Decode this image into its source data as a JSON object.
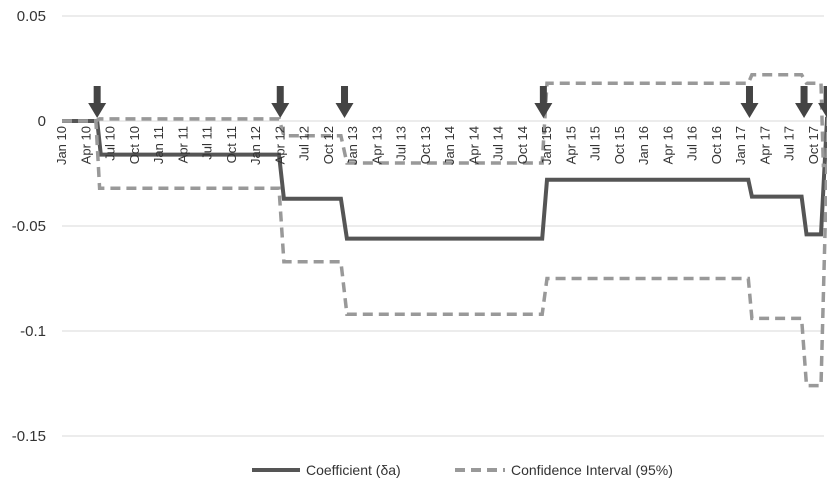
{
  "chart_data": {
    "type": "line",
    "title": "",
    "xlabel": "",
    "ylabel": "",
    "ylim": [
      -0.15,
      0.05
    ],
    "yticks": [
      "-0.15",
      "-0.1",
      "-0.05",
      "0",
      "0.05"
    ],
    "grid": "horizontal",
    "legend_position": "bottom",
    "x_categories": [
      "Jan 10",
      "Apr 10",
      "Jul 10",
      "Oct 10",
      "Jan 11",
      "Apr 11",
      "Jul 11",
      "Oct 11",
      "Jan 12",
      "Apr 12",
      "Jul 12",
      "Oct 12",
      "Jan 13",
      "Apr 13",
      "Jul 13",
      "Oct 13",
      "Jan 14",
      "Apr 14",
      "Jul 14",
      "Oct 14",
      "Jan 15",
      "Apr 15",
      "Jul 15",
      "Oct 15",
      "Jan 16",
      "Apr 16",
      "Jul 16",
      "Oct 16",
      "Jan 17",
      "Apr 17",
      "Jul 17",
      "Oct 17"
    ],
    "series": [
      {
        "name": "Coefficient (δa)",
        "style": "solid",
        "color": "#555555",
        "points": [
          [
            0,
            0
          ],
          [
            1.45,
            0
          ],
          [
            1.6,
            -0.016
          ],
          [
            8.95,
            -0.016
          ],
          [
            9.15,
            -0.037
          ],
          [
            11.5,
            -0.037
          ],
          [
            11.75,
            -0.056
          ],
          [
            19.8,
            -0.056
          ],
          [
            20.0,
            -0.028
          ],
          [
            28.3,
            -0.028
          ],
          [
            28.45,
            -0.036
          ],
          [
            30.5,
            -0.036
          ],
          [
            30.7,
            -0.054
          ],
          [
            31.3,
            -0.054
          ],
          [
            31.55,
            0.002
          ]
        ]
      },
      {
        "name": "Confidence Interval (95%)",
        "style": "dashed",
        "color": "#999999",
        "points": [
          [
            0,
            0
          ],
          [
            1.4,
            0
          ],
          [
            1.55,
            -0.032
          ],
          [
            8.95,
            -0.032
          ],
          [
            9.15,
            -0.067
          ],
          [
            11.5,
            -0.067
          ],
          [
            11.75,
            -0.092
          ],
          [
            19.8,
            -0.092
          ],
          [
            20.0,
            -0.075
          ],
          [
            28.3,
            -0.075
          ],
          [
            28.45,
            -0.094
          ],
          [
            30.5,
            -0.094
          ],
          [
            30.7,
            -0.126
          ],
          [
            31.3,
            -0.126
          ],
          [
            31.7,
            0.05
          ]
        ]
      },
      {
        "name": "",
        "style": "dashed",
        "color": "#999999",
        "points": [
          [
            0,
            0
          ],
          [
            1.4,
            0
          ],
          [
            1.55,
            0.001
          ],
          [
            8.95,
            0.001
          ],
          [
            9.15,
            -0.007
          ],
          [
            11.5,
            -0.007
          ],
          [
            11.75,
            -0.02
          ],
          [
            19.8,
            -0.02
          ],
          [
            20.0,
            0.018
          ],
          [
            28.3,
            0.018
          ],
          [
            28.45,
            0.022
          ],
          [
            30.5,
            0.022
          ],
          [
            30.7,
            0.018
          ],
          [
            31.3,
            0.018
          ],
          [
            31.4,
            -0.022
          ]
        ]
      }
    ],
    "arrows_at_x": [
      1.45,
      9.0,
      11.65,
      19.85,
      28.35,
      30.6,
      31.55
    ],
    "legend": [
      "Coefficient (δa)",
      "Confidence Interval (95%)"
    ]
  }
}
